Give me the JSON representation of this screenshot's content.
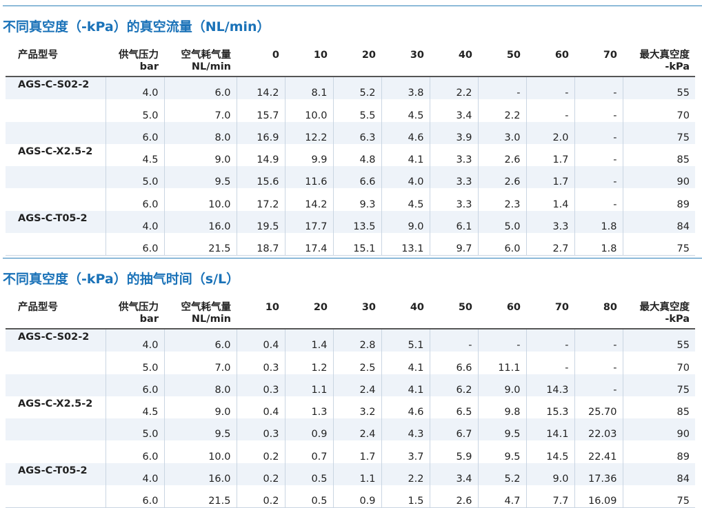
{
  "sections": [
    {
      "title": "不同真空度（-kPa）的真空流量（NL/min）",
      "table": {
        "header": [
          [
            "产品型号"
          ],
          [
            "供气压力",
            "bar"
          ],
          [
            "空气耗气量",
            "NL/min"
          ],
          [
            "0"
          ],
          [
            "10"
          ],
          [
            "20"
          ],
          [
            "30"
          ],
          [
            "40"
          ],
          [
            "50"
          ],
          [
            "60"
          ],
          [
            "70"
          ],
          [
            "最大真空度",
            "-kPa"
          ]
        ],
        "groups": [
          {
            "model": "AGS-C-S02-2",
            "rows": [
              [
                "4.0",
                "6.0",
                "14.2",
                "8.1",
                "5.2",
                "3.8",
                "2.2",
                "-",
                "-",
                "-",
                "55"
              ],
              [
                "5.0",
                "7.0",
                "15.7",
                "10.0",
                "5.5",
                "4.5",
                "3.4",
                "2.2",
                "-",
                "-",
                "70"
              ],
              [
                "6.0",
                "8.0",
                "16.9",
                "12.2",
                "6.3",
                "4.6",
                "3.9",
                "3.0",
                "2.0",
                "-",
                "75"
              ]
            ]
          },
          {
            "model": "AGS-C-X2.5-2",
            "rows": [
              [
                "4.5",
                "9.0",
                "14.9",
                "9.9",
                "4.8",
                "4.1",
                "3.3",
                "2.6",
                "1.7",
                "-",
                "85"
              ],
              [
                "5.0",
                "9.5",
                "15.6",
                "11.6",
                "6.6",
                "4.0",
                "3.3",
                "2.6",
                "1.7",
                "-",
                "90"
              ],
              [
                "6.0",
                "10.0",
                "17.2",
                "14.2",
                "9.3",
                "4.5",
                "3.3",
                "2.3",
                "1.4",
                "-",
                "89"
              ]
            ]
          },
          {
            "model": "AGS-C-T05-2",
            "rows": [
              [
                "4.0",
                "16.0",
                "19.5",
                "17.7",
                "13.5",
                "9.0",
                "6.1",
                "5.0",
                "3.3",
                "1.8",
                "84"
              ],
              [
                "6.0",
                "21.5",
                "18.7",
                "17.4",
                "15.1",
                "13.1",
                "9.7",
                "6.0",
                "2.7",
                "1.8",
                "75"
              ]
            ]
          }
        ]
      }
    },
    {
      "title": "不同真空度（-kPa）的抽气时间（s/L）",
      "table": {
        "header": [
          [
            "产品型号"
          ],
          [
            "供气压力",
            "bar"
          ],
          [
            "空气耗气量",
            "NL/min"
          ],
          [
            "10"
          ],
          [
            "20"
          ],
          [
            "30"
          ],
          [
            "40"
          ],
          [
            "50"
          ],
          [
            "60"
          ],
          [
            "70"
          ],
          [
            "80"
          ],
          [
            "最大真空度",
            "-kPa"
          ]
        ],
        "groups": [
          {
            "model": "AGS-C-S02-2",
            "rows": [
              [
                "4.0",
                "6.0",
                "0.4",
                "1.4",
                "2.8",
                "5.1",
                "-",
                "-",
                "-",
                "-",
                "55"
              ],
              [
                "5.0",
                "7.0",
                "0.3",
                "1.2",
                "2.5",
                "4.1",
                "6.6",
                "11.1",
                "-",
                "-",
                "70"
              ],
              [
                "6.0",
                "8.0",
                "0.3",
                "1.1",
                "2.4",
                "4.1",
                "6.2",
                "9.0",
                "14.3",
                "-",
                "75"
              ]
            ]
          },
          {
            "model": "AGS-C-X2.5-2",
            "rows": [
              [
                "4.5",
                "9.0",
                "0.4",
                "1.3",
                "3.2",
                "4.6",
                "6.5",
                "9.8",
                "15.3",
                "25.70",
                "85"
              ],
              [
                "5.0",
                "9.5",
                "0.3",
                "0.9",
                "2.4",
                "4.3",
                "6.7",
                "9.5",
                "14.1",
                "22.03",
                "90"
              ],
              [
                "6.0",
                "10.0",
                "0.2",
                "0.7",
                "1.7",
                "3.7",
                "5.9",
                "9.5",
                "14.5",
                "22.41",
                "89"
              ]
            ]
          },
          {
            "model": "AGS-C-T05-2",
            "rows": [
              [
                "4.0",
                "16.0",
                "0.2",
                "0.5",
                "1.1",
                "2.2",
                "3.4",
                "5.2",
                "9.0",
                "17.36",
                "84"
              ],
              [
                "6.0",
                "21.5",
                "0.2",
                "0.5",
                "0.9",
                "1.5",
                "2.6",
                "4.7",
                "7.7",
                "16.09",
                "75"
              ]
            ]
          }
        ]
      }
    }
  ]
}
